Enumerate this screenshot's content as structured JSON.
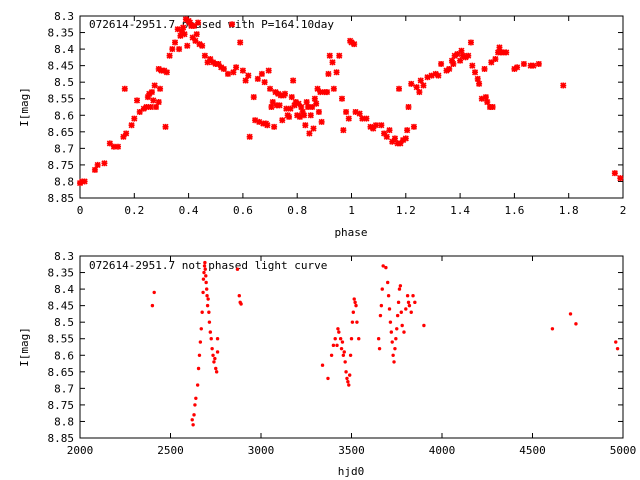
{
  "chart_data": [
    {
      "type": "scatter",
      "title": "072614-2951.7 phased with P=164.10day",
      "xlabel": "phase",
      "ylabel": "I[mag]",
      "xlim": [
        0,
        2
      ],
      "ylim": [
        8.3,
        8.85
      ],
      "y_inverted": true,
      "xticks": [
        "0",
        "0.2",
        "0.4",
        "0.6",
        "0.8",
        "1",
        "1.2",
        "1.4",
        "1.6",
        "1.8",
        "2"
      ],
      "yticks": [
        "8.3",
        "8.35",
        "8.4",
        "8.45",
        "8.5",
        "8.55",
        "8.6",
        "8.65",
        "8.7",
        "8.75",
        "8.8",
        "8.85"
      ],
      "marker": "star",
      "color": "#ff0000",
      "grid": false,
      "legend": "none",
      "points": [
        [
          0.0,
          8.805
        ],
        [
          0.008,
          8.8
        ],
        [
          0.017,
          8.8
        ],
        [
          0.055,
          8.765
        ],
        [
          0.065,
          8.75
        ],
        [
          0.09,
          8.745
        ],
        [
          0.11,
          8.685
        ],
        [
          0.125,
          8.695
        ],
        [
          0.14,
          8.695
        ],
        [
          0.16,
          8.665
        ],
        [
          0.165,
          8.52
        ],
        [
          0.17,
          8.655
        ],
        [
          0.19,
          8.63
        ],
        [
          0.2,
          8.61
        ],
        [
          0.21,
          8.555
        ],
        [
          0.22,
          8.59
        ],
        [
          0.235,
          8.58
        ],
        [
          0.245,
          8.575
        ],
        [
          0.25,
          8.545
        ],
        [
          0.255,
          8.535
        ],
        [
          0.26,
          8.575
        ],
        [
          0.265,
          8.53
        ],
        [
          0.27,
          8.555
        ],
        [
          0.275,
          8.51
        ],
        [
          0.28,
          8.575
        ],
        [
          0.29,
          8.56
        ],
        [
          0.29,
          8.46
        ],
        [
          0.295,
          8.52
        ],
        [
          0.3,
          8.465
        ],
        [
          0.31,
          8.465
        ],
        [
          0.315,
          8.635
        ],
        [
          0.32,
          8.47
        ],
        [
          0.33,
          8.42
        ],
        [
          0.34,
          8.4
        ],
        [
          0.35,
          8.38
        ],
        [
          0.36,
          8.34
        ],
        [
          0.365,
          8.4
        ],
        [
          0.37,
          8.36
        ],
        [
          0.375,
          8.345
        ],
        [
          0.38,
          8.335
        ],
        [
          0.385,
          8.355
        ],
        [
          0.39,
          8.31
        ],
        [
          0.395,
          8.39
        ],
        [
          0.4,
          8.315
        ],
        [
          0.405,
          8.32
        ],
        [
          0.41,
          8.33
        ],
        [
          0.415,
          8.365
        ],
        [
          0.42,
          8.33
        ],
        [
          0.425,
          8.375
        ],
        [
          0.43,
          8.355
        ],
        [
          0.435,
          8.32
        ],
        [
          0.44,
          8.385
        ],
        [
          0.45,
          8.39
        ],
        [
          0.46,
          8.42
        ],
        [
          0.47,
          8.44
        ],
        [
          0.48,
          8.43
        ],
        [
          0.49,
          8.44
        ],
        [
          0.5,
          8.445
        ],
        [
          0.51,
          8.445
        ],
        [
          0.52,
          8.455
        ],
        [
          0.53,
          8.46
        ],
        [
          0.545,
          8.475
        ],
        [
          0.56,
          8.325
        ],
        [
          0.565,
          8.47
        ],
        [
          0.575,
          8.455
        ],
        [
          0.59,
          8.38
        ],
        [
          0.6,
          8.465
        ],
        [
          0.61,
          8.495
        ],
        [
          0.62,
          8.48
        ],
        [
          0.625,
          8.665
        ],
        [
          0.64,
          8.545
        ],
        [
          0.645,
          8.615
        ],
        [
          0.655,
          8.49
        ],
        [
          0.66,
          8.62
        ],
        [
          0.67,
          8.475
        ],
        [
          0.675,
          8.625
        ],
        [
          0.68,
          8.5
        ],
        [
          0.685,
          8.625
        ],
        [
          0.69,
          8.63
        ],
        [
          0.695,
          8.465
        ],
        [
          0.7,
          8.52
        ],
        [
          0.705,
          8.575
        ],
        [
          0.71,
          8.56
        ],
        [
          0.715,
          8.635
        ],
        [
          0.72,
          8.53
        ],
        [
          0.725,
          8.57
        ],
        [
          0.73,
          8.535
        ],
        [
          0.735,
          8.57
        ],
        [
          0.74,
          8.54
        ],
        [
          0.745,
          8.615
        ],
        [
          0.75,
          8.54
        ],
        [
          0.755,
          8.535
        ],
        [
          0.76,
          8.58
        ],
        [
          0.765,
          8.6
        ],
        [
          0.77,
          8.605
        ],
        [
          0.775,
          8.58
        ],
        [
          0.78,
          8.545
        ],
        [
          0.785,
          8.495
        ],
        [
          0.79,
          8.57
        ],
        [
          0.795,
          8.56
        ],
        [
          0.8,
          8.6
        ],
        [
          0.805,
          8.565
        ],
        [
          0.81,
          8.605
        ],
        [
          0.815,
          8.575
        ],
        [
          0.82,
          8.59
        ],
        [
          0.825,
          8.6
        ],
        [
          0.83,
          8.63
        ],
        [
          0.835,
          8.56
        ],
        [
          0.84,
          8.575
        ],
        [
          0.845,
          8.655
        ],
        [
          0.85,
          8.6
        ],
        [
          0.855,
          8.575
        ],
        [
          0.86,
          8.64
        ],
        [
          0.865,
          8.55
        ],
        [
          0.87,
          8.565
        ],
        [
          0.875,
          8.52
        ],
        [
          0.88,
          8.59
        ],
        [
          0.885,
          8.53
        ],
        [
          0.89,
          8.62
        ],
        [
          0.9,
          8.53
        ],
        [
          0.91,
          8.53
        ],
        [
          0.915,
          8.475
        ],
        [
          0.92,
          8.42
        ],
        [
          0.93,
          8.44
        ],
        [
          0.935,
          8.52
        ],
        [
          0.945,
          8.47
        ],
        [
          0.955,
          8.42
        ],
        [
          0.965,
          8.55
        ],
        [
          0.97,
          8.645
        ],
        [
          0.98,
          8.59
        ],
        [
          0.99,
          8.61
        ],
        [
          0.995,
          8.375
        ],
        [
          1.0,
          8.38
        ],
        [
          1.01,
          8.385
        ],
        [
          1.015,
          8.59
        ],
        [
          1.03,
          8.595
        ],
        [
          1.04,
          8.61
        ],
        [
          1.055,
          8.61
        ],
        [
          1.07,
          8.635
        ],
        [
          1.08,
          8.64
        ],
        [
          1.09,
          8.63
        ],
        [
          1.11,
          8.63
        ],
        [
          1.12,
          8.655
        ],
        [
          1.13,
          8.665
        ],
        [
          1.14,
          8.645
        ],
        [
          1.15,
          8.68
        ],
        [
          1.16,
          8.67
        ],
        [
          1.17,
          8.685
        ],
        [
          1.175,
          8.52
        ],
        [
          1.18,
          8.685
        ],
        [
          1.19,
          8.675
        ],
        [
          1.2,
          8.67
        ],
        [
          1.205,
          8.645
        ],
        [
          1.21,
          8.575
        ],
        [
          1.22,
          8.505
        ],
        [
          1.23,
          8.635
        ],
        [
          1.24,
          8.515
        ],
        [
          1.25,
          8.53
        ],
        [
          1.255,
          8.495
        ],
        [
          1.265,
          8.51
        ],
        [
          1.28,
          8.485
        ],
        [
          1.295,
          8.48
        ],
        [
          1.31,
          8.475
        ],
        [
          1.32,
          8.48
        ],
        [
          1.33,
          8.445
        ],
        [
          1.35,
          8.465
        ],
        [
          1.36,
          8.46
        ],
        [
          1.37,
          8.435
        ],
        [
          1.375,
          8.445
        ],
        [
          1.38,
          8.42
        ],
        [
          1.39,
          8.415
        ],
        [
          1.4,
          8.435
        ],
        [
          1.405,
          8.405
        ],
        [
          1.41,
          8.42
        ],
        [
          1.42,
          8.425
        ],
        [
          1.43,
          8.42
        ],
        [
          1.44,
          8.38
        ],
        [
          1.445,
          8.45
        ],
        [
          1.455,
          8.47
        ],
        [
          1.465,
          8.49
        ],
        [
          1.47,
          8.505
        ],
        [
          1.48,
          8.55
        ],
        [
          1.49,
          8.46
        ],
        [
          1.495,
          8.545
        ],
        [
          1.5,
          8.56
        ],
        [
          1.51,
          8.575
        ],
        [
          1.515,
          8.44
        ],
        [
          1.52,
          8.575
        ],
        [
          1.53,
          8.43
        ],
        [
          1.54,
          8.41
        ],
        [
          1.545,
          8.395
        ],
        [
          1.55,
          8.41
        ],
        [
          1.56,
          8.41
        ],
        [
          1.57,
          8.41
        ],
        [
          1.6,
          8.46
        ],
        [
          1.61,
          8.455
        ],
        [
          1.635,
          8.445
        ],
        [
          1.66,
          8.45
        ],
        [
          1.67,
          8.45
        ],
        [
          1.69,
          8.445
        ],
        [
          1.78,
          8.51
        ],
        [
          1.97,
          8.775
        ],
        [
          1.99,
          8.79
        ]
      ]
    },
    {
      "type": "scatter",
      "title": "072614-2951.7 not phased light curve",
      "xlabel": "hjd0",
      "ylabel": "I[mag]",
      "xlim": [
        2000,
        5000
      ],
      "ylim": [
        8.3,
        8.85
      ],
      "y_inverted": true,
      "xticks": [
        "2000",
        "2500",
        "3000",
        "3500",
        "4000",
        "4500",
        "5000"
      ],
      "yticks": [
        "8.3",
        "8.35",
        "8.4",
        "8.45",
        "8.5",
        "8.55",
        "8.6",
        "8.65",
        "8.7",
        "8.75",
        "8.8",
        "8.85"
      ],
      "marker": "dot",
      "color": "#ff0000",
      "grid": false,
      "legend": "none",
      "points": [
        [
          2400,
          8.45
        ],
        [
          2410,
          8.41
        ],
        [
          2620,
          8.795
        ],
        [
          2625,
          8.81
        ],
        [
          2630,
          8.78
        ],
        [
          2635,
          8.75
        ],
        [
          2640,
          8.73
        ],
        [
          2650,
          8.69
        ],
        [
          2655,
          8.64
        ],
        [
          2660,
          8.6
        ],
        [
          2665,
          8.56
        ],
        [
          2670,
          8.52
        ],
        [
          2675,
          8.47
        ],
        [
          2680,
          8.41
        ],
        [
          2682,
          8.37
        ],
        [
          2685,
          8.35
        ],
        [
          2688,
          8.33
        ],
        [
          2690,
          8.32
        ],
        [
          2692,
          8.34
        ],
        [
          2695,
          8.36
        ],
        [
          2697,
          8.38
        ],
        [
          2700,
          8.4
        ],
        [
          2702,
          8.42
        ],
        [
          2705,
          8.45
        ],
        [
          2708,
          8.43
        ],
        [
          2712,
          8.47
        ],
        [
          2715,
          8.5
        ],
        [
          2720,
          8.53
        ],
        [
          2725,
          8.55
        ],
        [
          2730,
          8.58
        ],
        [
          2735,
          8.6
        ],
        [
          2740,
          8.62
        ],
        [
          2745,
          8.61
        ],
        [
          2750,
          8.64
        ],
        [
          2755,
          8.65
        ],
        [
          2760,
          8.59
        ],
        [
          2760,
          8.55
        ],
        [
          2870,
          8.34
        ],
        [
          2880,
          8.42
        ],
        [
          2885,
          8.44
        ],
        [
          2890,
          8.445
        ],
        [
          3340,
          8.63
        ],
        [
          3370,
          8.67
        ],
        [
          3390,
          8.6
        ],
        [
          3400,
          8.57
        ],
        [
          3410,
          8.55
        ],
        [
          3420,
          8.57
        ],
        [
          3425,
          8.52
        ],
        [
          3430,
          8.53
        ],
        [
          3440,
          8.55
        ],
        [
          3445,
          8.58
        ],
        [
          3450,
          8.56
        ],
        [
          3455,
          8.6
        ],
        [
          3460,
          8.59
        ],
        [
          3465,
          8.62
        ],
        [
          3470,
          8.65
        ],
        [
          3475,
          8.67
        ],
        [
          3480,
          8.68
        ],
        [
          3485,
          8.69
        ],
        [
          3490,
          8.66
        ],
        [
          3495,
          8.6
        ],
        [
          3500,
          8.55
        ],
        [
          3505,
          8.5
        ],
        [
          3510,
          8.47
        ],
        [
          3515,
          8.43
        ],
        [
          3520,
          8.44
        ],
        [
          3525,
          8.45
        ],
        [
          3530,
          8.5
        ],
        [
          3540,
          8.55
        ],
        [
          3650,
          8.55
        ],
        [
          3655,
          8.58
        ],
        [
          3660,
          8.48
        ],
        [
          3665,
          8.45
        ],
        [
          3670,
          8.4
        ],
        [
          3675,
          8.33
        ],
        [
          3690,
          8.335
        ],
        [
          3700,
          8.38
        ],
        [
          3705,
          8.42
        ],
        [
          3710,
          8.46
        ],
        [
          3715,
          8.5
        ],
        [
          3720,
          8.53
        ],
        [
          3725,
          8.56
        ],
        [
          3730,
          8.6
        ],
        [
          3735,
          8.62
        ],
        [
          3740,
          8.58
        ],
        [
          3745,
          8.55
        ],
        [
          3750,
          8.52
        ],
        [
          3755,
          8.48
        ],
        [
          3760,
          8.44
        ],
        [
          3765,
          8.4
        ],
        [
          3770,
          8.39
        ],
        [
          3775,
          8.47
        ],
        [
          3780,
          8.51
        ],
        [
          3790,
          8.53
        ],
        [
          3800,
          8.46
        ],
        [
          3810,
          8.42
        ],
        [
          3815,
          8.44
        ],
        [
          3820,
          8.45
        ],
        [
          3830,
          8.47
        ],
        [
          3840,
          8.42
        ],
        [
          3850,
          8.44
        ],
        [
          3900,
          8.51
        ],
        [
          4610,
          8.52
        ],
        [
          4710,
          8.475
        ],
        [
          4740,
          8.505
        ],
        [
          4960,
          8.56
        ],
        [
          4970,
          8.58
        ]
      ]
    }
  ]
}
